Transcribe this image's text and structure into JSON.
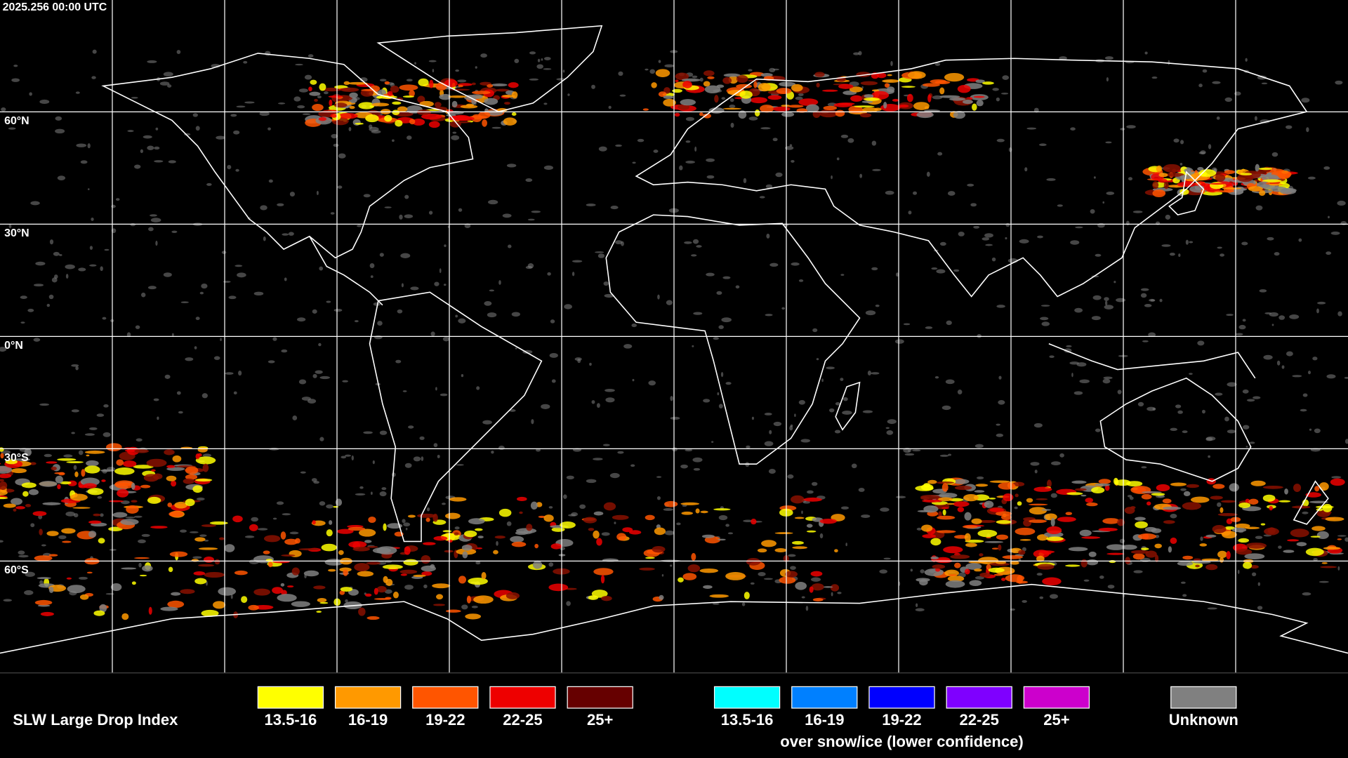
{
  "header": {
    "timestamp": "2025.256 00:00 UTC"
  },
  "latitude_labels": [
    "60°N",
    "30°N",
    "0°N",
    "30°S",
    "60°S"
  ],
  "legend": {
    "title": "SLW Large Drop Index",
    "items": [
      {
        "label": "13.5-16",
        "color": "#ffff00"
      },
      {
        "label": "16-19",
        "color": "#ff9900"
      },
      {
        "label": "19-22",
        "color": "#ff5500"
      },
      {
        "label": "22-25",
        "color": "#ee0000"
      },
      {
        "label": "25+",
        "color": "#660000"
      }
    ],
    "snow_items": [
      {
        "label": "13.5-16",
        "color": "#00ffff"
      },
      {
        "label": "16-19",
        "color": "#0080ff"
      },
      {
        "label": "19-22",
        "color": "#0000ff"
      },
      {
        "label": "22-25",
        "color": "#7f00ff"
      },
      {
        "label": "25+",
        "color": "#cc00cc"
      }
    ],
    "snow_caption": "over snow/ice (lower confidence)",
    "unknown": {
      "label": "Unknown",
      "color": "#808080"
    }
  }
}
